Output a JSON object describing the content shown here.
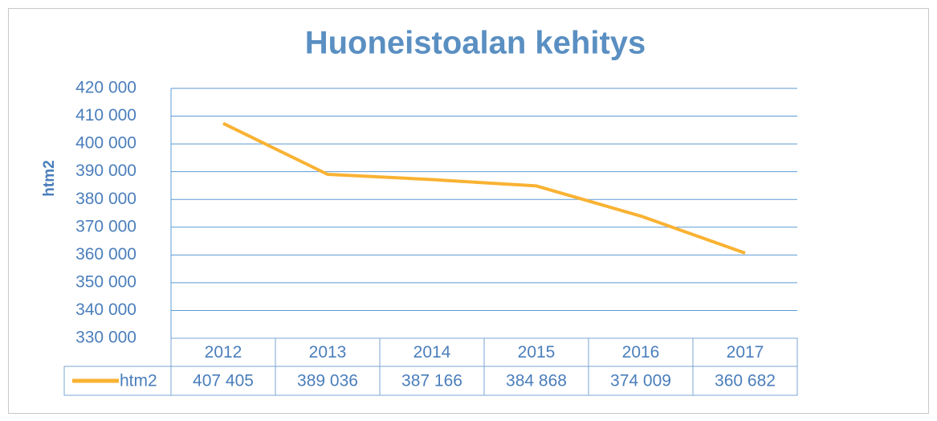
{
  "chart_data": {
    "type": "line",
    "title": "Huoneistoalan kehitys",
    "y_label": "htm2",
    "categories": [
      "2012",
      "2013",
      "2014",
      "2015",
      "2016",
      "2017"
    ],
    "series": [
      {
        "name": "htm2",
        "color": "#f9b233",
        "values": [
          407405,
          389036,
          387166,
          384868,
          374009,
          360682
        ],
        "value_labels": [
          "407 405",
          "389 036",
          "387 166",
          "384 868",
          "374 009",
          "360 682"
        ]
      }
    ],
    "ylim": [
      330000,
      420000
    ],
    "yticks": [
      {
        "value": 330000,
        "label": "330 000"
      },
      {
        "value": 340000,
        "label": "340 000"
      },
      {
        "value": 350000,
        "label": "350 000"
      },
      {
        "value": 360000,
        "label": "360 000"
      },
      {
        "value": 370000,
        "label": "370 000"
      },
      {
        "value": 380000,
        "label": "380 000"
      },
      {
        "value": 390000,
        "label": "390 000"
      },
      {
        "value": 400000,
        "label": "400 000"
      },
      {
        "value": 410000,
        "label": "410 000"
      },
      {
        "value": 420000,
        "label": "420 000"
      }
    ],
    "grid": true
  }
}
